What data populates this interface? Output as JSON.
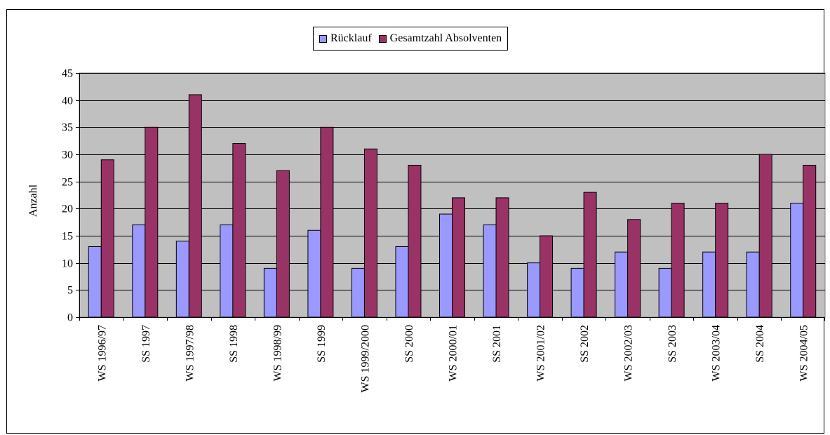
{
  "chart_data": {
    "type": "bar",
    "title": "",
    "xlabel": "",
    "ylabel": "Anzahl",
    "ylim": [
      0,
      45
    ],
    "yticks": [
      0,
      5,
      10,
      15,
      20,
      25,
      30,
      35,
      40,
      45
    ],
    "grid": true,
    "legend_position": "top-center",
    "categories": [
      "WS 1996/97",
      "SS 1997",
      "WS 1997/98",
      "SS 1998",
      "WS 1998/99",
      "SS 1999",
      "WS 1999/2000",
      "SS 2000",
      "WS 2000/01",
      "SS 2001",
      "WS 2001/02",
      "SS 2002",
      "WS 2002/03",
      "SS 2003",
      "WS 2003/04",
      "SS 2004",
      "WS 2004/05"
    ],
    "series": [
      {
        "name": "Rücklauf",
        "color": "#9999ff",
        "values": [
          13,
          17,
          14,
          17,
          9,
          16,
          9,
          13,
          19,
          17,
          10,
          9,
          12,
          9,
          12,
          12,
          21
        ]
      },
      {
        "name": "Gesamtzahl Absolventen",
        "color": "#993366",
        "values": [
          29,
          35,
          41,
          32,
          27,
          35,
          31,
          28,
          22,
          22,
          15,
          23,
          18,
          21,
          21,
          30,
          28
        ]
      }
    ],
    "plot_background": "#c0c0c0"
  }
}
